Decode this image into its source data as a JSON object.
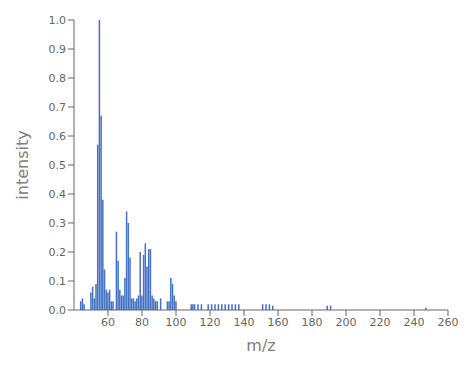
{
  "chart_data": {
    "type": "bar",
    "xlabel": "m/z",
    "ylabel": "intensity",
    "x": [
      44,
      45,
      46,
      50,
      51,
      52,
      53,
      54,
      55,
      56,
      57,
      58,
      59,
      60,
      61,
      62,
      63,
      65,
      66,
      67,
      68,
      69,
      70,
      71,
      72,
      73,
      74,
      75,
      76,
      77,
      78,
      79,
      80,
      81,
      82,
      83,
      84,
      85,
      86,
      87,
      88,
      89,
      91,
      95,
      96,
      97,
      98,
      99,
      100,
      109,
      110,
      111,
      113,
      115,
      119,
      121,
      123,
      125,
      127,
      129,
      131,
      133,
      135,
      137,
      151,
      153,
      155,
      157,
      189,
      191,
      247
    ],
    "values": [
      0.03,
      0.04,
      0.02,
      0.06,
      0.08,
      0.04,
      0.09,
      0.57,
      1.0,
      0.67,
      0.38,
      0.14,
      0.07,
      0.06,
      0.07,
      0.03,
      0.03,
      0.27,
      0.17,
      0.07,
      0.05,
      0.05,
      0.11,
      0.34,
      0.3,
      0.18,
      0.04,
      0.04,
      0.03,
      0.04,
      0.05,
      0.2,
      0.05,
      0.19,
      0.23,
      0.15,
      0.21,
      0.21,
      0.05,
      0.04,
      0.03,
      0.03,
      0.04,
      0.03,
      0.03,
      0.11,
      0.09,
      0.05,
      0.03,
      0.02,
      0.02,
      0.02,
      0.02,
      0.02,
      0.02,
      0.02,
      0.02,
      0.02,
      0.02,
      0.02,
      0.02,
      0.02,
      0.02,
      0.02,
      0.02,
      0.02,
      0.02,
      0.015,
      0.015,
      0.015,
      0.008
    ],
    "color": "#4472c4",
    "xlim": [
      40,
      260
    ],
    "ylim": [
      0,
      1
    ],
    "xticks": [
      60,
      80,
      100,
      120,
      140,
      160,
      180,
      200,
      220,
      240,
      260
    ],
    "yticks": [
      {
        "value": 0,
        "label": "0.0"
      },
      0.1,
      0.2,
      0.3,
      0.4,
      0.5,
      0.6,
      0.7,
      0.8,
      0.9,
      {
        "value": 1,
        "label": "1.0"
      }
    ],
    "grid": false
  }
}
